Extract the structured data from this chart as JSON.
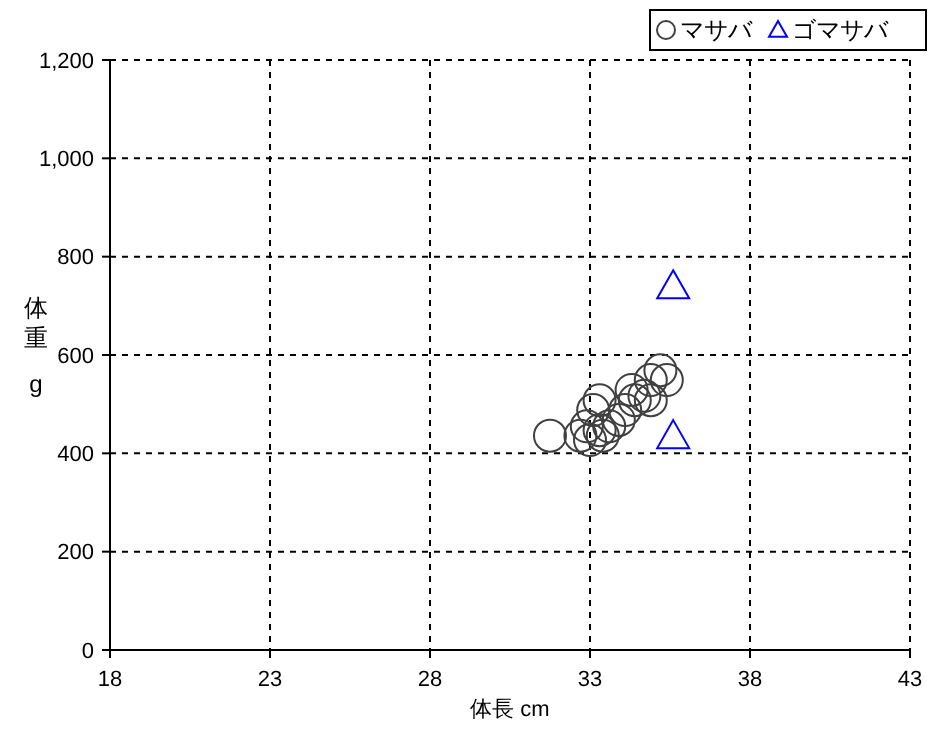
{
  "chart_data": {
    "type": "scatter",
    "xlabel": "体長 cm",
    "ylabel": "体重 g",
    "xlim": [
      18,
      43
    ],
    "xticks": [
      18,
      23,
      28,
      33,
      38,
      43
    ],
    "ylim": [
      0,
      1200
    ],
    "yticks": [
      0,
      200,
      400,
      600,
      800,
      {
        "value": 1000,
        "label": "1,000"
      },
      {
        "value": 1200,
        "label": "1,200"
      }
    ],
    "grid": true,
    "legend": "top right",
    "series": [
      {
        "name": "マサバ",
        "color": "#404040",
        "marker": "circle",
        "x": [
          31.75,
          32.7,
          32.9,
          33.1,
          33.3,
          33.3,
          33.6,
          33.9,
          34.1,
          34.3,
          34.4,
          34.7,
          34.9,
          34.9,
          35.2,
          35.4,
          33.0,
          33.4
        ],
        "values": [
          436,
          436,
          455,
          488,
          508,
          447,
          455,
          468,
          488,
          529,
          508,
          517,
          549,
          508,
          569,
          549,
          427,
          436
        ]
      },
      {
        "name": "ゴマサバ",
        "color": "#0000ff",
        "marker": "triangle",
        "x": [
          35.6,
          35.6
        ],
        "values": [
          740,
          435
        ]
      }
    ]
  }
}
